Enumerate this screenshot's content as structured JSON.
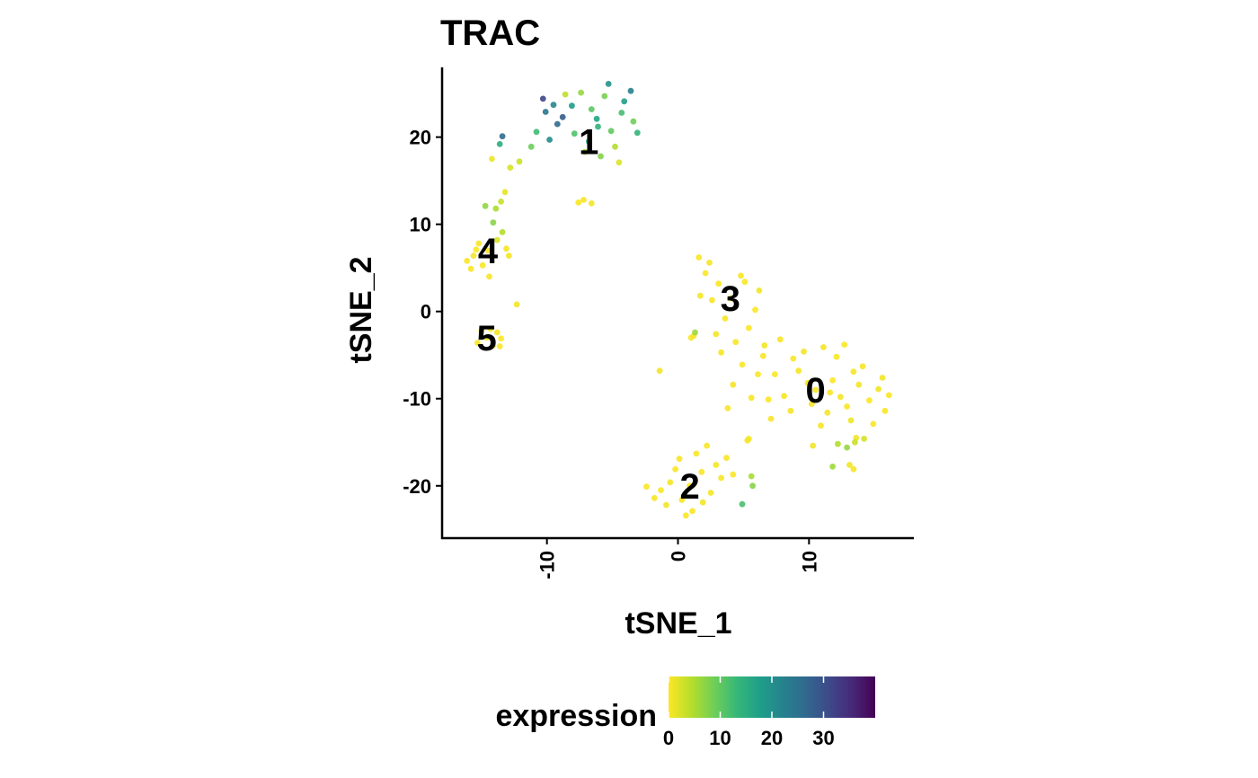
{
  "chart_data": {
    "type": "scatter",
    "title": "TRAC",
    "xlabel": "tSNE_1",
    "ylabel": "tSNE_2",
    "xlim": [
      -18,
      18
    ],
    "ylim": [
      -26,
      28
    ],
    "xticks": [
      -10,
      0,
      10
    ],
    "xtick_labels": [
      "-10",
      "0",
      "10"
    ],
    "yticks": [
      -20,
      -10,
      0,
      10,
      20
    ],
    "ytick_labels": [
      "-20",
      "-10",
      "0",
      "10",
      "20"
    ],
    "grid": false,
    "cluster_labels": [
      {
        "label": "0",
        "x": 10.5,
        "y": -9
      },
      {
        "label": "1",
        "x": -6.8,
        "y": 19.5
      },
      {
        "label": "2",
        "x": 0.9,
        "y": -20
      },
      {
        "label": "3",
        "x": 4,
        "y": 1.5
      },
      {
        "label": "4",
        "x": -14.5,
        "y": 7
      },
      {
        "label": "5",
        "x": -14.6,
        "y": -3
      }
    ],
    "legend": {
      "title": "expression",
      "position": "bottom",
      "ticks": [
        0,
        10,
        20,
        30
      ],
      "tick_labels": [
        "0",
        "10",
        "20",
        "30"
      ],
      "range": [
        0,
        40
      ],
      "colors": [
        "#FDE725",
        "#B5DE2B",
        "#6ECE58",
        "#35B779",
        "#1F9E89",
        "#26828E",
        "#31688E",
        "#3E4989",
        "#482878",
        "#440154"
      ]
    },
    "points": [
      {
        "x": 10.5,
        "y": -9,
        "v": 0.4
      },
      {
        "x": 12.1,
        "y": -5.2,
        "v": 0.2
      },
      {
        "x": 13.8,
        "y": -8.4,
        "v": 0.6
      },
      {
        "x": 9.2,
        "y": -6.8,
        "v": 0.3
      },
      {
        "x": 11.4,
        "y": -11.6,
        "v": 0.5
      },
      {
        "x": 14.6,
        "y": -10.2,
        "v": 0.1
      },
      {
        "x": 15.3,
        "y": -8.9,
        "v": 0.7
      },
      {
        "x": 12.7,
        "y": -3.8,
        "v": 0.2
      },
      {
        "x": 8.1,
        "y": -9.7,
        "v": 0.4
      },
      {
        "x": 10.9,
        "y": -13.1,
        "v": 0.3
      },
      {
        "x": 13.2,
        "y": -12.5,
        "v": 0.9
      },
      {
        "x": 15.8,
        "y": -11.4,
        "v": 0.2
      },
      {
        "x": 9.6,
        "y": -4.6,
        "v": 0.5
      },
      {
        "x": 11.8,
        "y": -7.9,
        "v": 0.1
      },
      {
        "x": 14.1,
        "y": -6.3,
        "v": 0.3
      },
      {
        "x": 12.4,
        "y": -9.8,
        "v": 0.6
      },
      {
        "x": 7.4,
        "y": -7.2,
        "v": 0.2
      },
      {
        "x": 10.2,
        "y": -10.6,
        "v": 0.4
      },
      {
        "x": 13.6,
        "y": -14.5,
        "v": 0.8
      },
      {
        "x": 16.1,
        "y": -9.6,
        "v": 0.3
      },
      {
        "x": 8.8,
        "y": -5.4,
        "v": 0.2
      },
      {
        "x": 11.1,
        "y": -4.1,
        "v": 0.5
      },
      {
        "x": 14.9,
        "y": -12.9,
        "v": 0.4
      },
      {
        "x": 12.9,
        "y": -10.9,
        "v": 0.1
      },
      {
        "x": 9.9,
        "y": -8.2,
        "v": 0.3
      },
      {
        "x": 15.6,
        "y": -7.6,
        "v": 0.6
      },
      {
        "x": 11.6,
        "y": -9.3,
        "v": 0.2
      },
      {
        "x": 13.4,
        "y": -6.9,
        "v": 0.4
      },
      {
        "x": 12.2,
        "y": -15.2,
        "v": 4.5
      },
      {
        "x": 12.9,
        "y": -15.6,
        "v": 6.5
      },
      {
        "x": 13.5,
        "y": -15.0,
        "v": 3.2
      },
      {
        "x": 11.8,
        "y": -17.8,
        "v": 5.8
      },
      {
        "x": 10.3,
        "y": -15.4,
        "v": 0.6
      },
      {
        "x": 13.4,
        "y": -18.1,
        "v": 0.5
      },
      {
        "x": 13.1,
        "y": -17.6,
        "v": 0.7
      },
      {
        "x": 14.2,
        "y": -14.6,
        "v": 2.4
      },
      {
        "x": 6.5,
        "y": -5.1,
        "v": 0.4
      },
      {
        "x": 7.8,
        "y": -3.2,
        "v": 0.3
      },
      {
        "x": 8.6,
        "y": -11.4,
        "v": 0.5
      },
      {
        "x": 6.9,
        "y": -10.1,
        "v": 0.2
      },
      {
        "x": 4,
        "y": 1.5,
        "v": 0.3
      },
      {
        "x": 2.4,
        "y": 5.6,
        "v": 0.5
      },
      {
        "x": 1.6,
        "y": 6.2,
        "v": 0.2
      },
      {
        "x": 4.8,
        "y": 4.1,
        "v": 0.4
      },
      {
        "x": 3.1,
        "y": 3.2,
        "v": 0.1
      },
      {
        "x": 6.2,
        "y": 2.4,
        "v": 0.6
      },
      {
        "x": 3.6,
        "y": -0.8,
        "v": 0.3
      },
      {
        "x": 5.4,
        "y": -1.9,
        "v": 0.2
      },
      {
        "x": 2.9,
        "y": -2.6,
        "v": 0.5
      },
      {
        "x": 4.4,
        "y": -3.5,
        "v": 0.3
      },
      {
        "x": 5.9,
        "y": 0.2,
        "v": 0.1
      },
      {
        "x": 3.3,
        "y": -4.7,
        "v": 0.4
      },
      {
        "x": 4.9,
        "y": -6.1,
        "v": 0.2
      },
      {
        "x": 6.6,
        "y": -3.9,
        "v": 0.6
      },
      {
        "x": 2.6,
        "y": 1.3,
        "v": 0.3
      },
      {
        "x": 5.1,
        "y": 3.4,
        "v": 0.2
      },
      {
        "x": 4.2,
        "y": -8.4,
        "v": 0.5
      },
      {
        "x": 5.6,
        "y": -9.9,
        "v": 0.3
      },
      {
        "x": 3.8,
        "y": -11.1,
        "v": 0.4
      },
      {
        "x": 6.1,
        "y": -7.2,
        "v": 0.2
      },
      {
        "x": 7.1,
        "y": -12.3,
        "v": 0.4
      },
      {
        "x": 5.3,
        "y": -14.8,
        "v": 0.3
      },
      {
        "x": 1.7,
        "y": 1.8,
        "v": 0.4
      },
      {
        "x": 2.1,
        "y": 4.4,
        "v": 0.2
      },
      {
        "x": 1.2,
        "y": -2.8,
        "v": 0.6
      },
      {
        "x": 1.0,
        "y": -3.0,
        "v": 0.3
      },
      {
        "x": 1.3,
        "y": -2.4,
        "v": 6.0
      },
      {
        "x": 0.9,
        "y": -20,
        "v": 0.3
      },
      {
        "x": -0.6,
        "y": -19.6,
        "v": 0.5
      },
      {
        "x": 1.8,
        "y": -18.4,
        "v": 0.2
      },
      {
        "x": 0.3,
        "y": -21.6,
        "v": 0.4
      },
      {
        "x": -1.3,
        "y": -20.5,
        "v": 0.1
      },
      {
        "x": 2.5,
        "y": -20.8,
        "v": 0.6
      },
      {
        "x": 1.1,
        "y": -22.9,
        "v": 0.3
      },
      {
        "x": -0.2,
        "y": -18.1,
        "v": 0.2
      },
      {
        "x": 2.9,
        "y": -17.6,
        "v": 0.5
      },
      {
        "x": 1.4,
        "y": -16.3,
        "v": 0.3
      },
      {
        "x": -1.8,
        "y": -21.4,
        "v": 0.4
      },
      {
        "x": 0.6,
        "y": -23.4,
        "v": 0.2
      },
      {
        "x": 3.3,
        "y": -19.1,
        "v": 0.3
      },
      {
        "x": -0.9,
        "y": -22.2,
        "v": 0.5
      },
      {
        "x": 2.2,
        "y": -15.4,
        "v": 0.1
      },
      {
        "x": 3.7,
        "y": -16.8,
        "v": 0.4
      },
      {
        "x": -2.4,
        "y": -20.1,
        "v": 0.2
      },
      {
        "x": 1.9,
        "y": -21.9,
        "v": 0.6
      },
      {
        "x": 0.1,
        "y": -16.9,
        "v": 0.3
      },
      {
        "x": 4.2,
        "y": -18.7,
        "v": 0.2
      },
      {
        "x": 5.6,
        "y": -18.9,
        "v": 5.2
      },
      {
        "x": 5.7,
        "y": -20.0,
        "v": 7.4
      },
      {
        "x": 4.9,
        "y": -22.1,
        "v": 11.8
      },
      {
        "x": 5.4,
        "y": -14.6,
        "v": 0.5
      },
      {
        "x": -1.4,
        "y": -6.8,
        "v": 0.6
      },
      {
        "x": -6.8,
        "y": 19.5,
        "v": 14.5
      },
      {
        "x": -5.6,
        "y": 24.7,
        "v": 8.2
      },
      {
        "x": -4.3,
        "y": 22.8,
        "v": 12.1
      },
      {
        "x": -9.2,
        "y": 21.5,
        "v": 26.4
      },
      {
        "x": -8.1,
        "y": 23.6,
        "v": 18.3
      },
      {
        "x": -10.3,
        "y": 24.4,
        "v": 31.5
      },
      {
        "x": -7.4,
        "y": 25.1,
        "v": 6.4
      },
      {
        "x": -5.1,
        "y": 20.7,
        "v": 9.8
      },
      {
        "x": -3.6,
        "y": 25.3,
        "v": 22.6
      },
      {
        "x": -6.2,
        "y": 22.1,
        "v": 16.8
      },
      {
        "x": -4.8,
        "y": 18.9,
        "v": 4.6
      },
      {
        "x": -7.9,
        "y": 20.4,
        "v": 11.3
      },
      {
        "x": -9.8,
        "y": 19.7,
        "v": 20.7
      },
      {
        "x": -3.1,
        "y": 20.5,
        "v": 13.9
      },
      {
        "x": -5.9,
        "y": 17.8,
        "v": 7.5
      },
      {
        "x": -10.1,
        "y": 22.9,
        "v": 24.1
      },
      {
        "x": -8.6,
        "y": 24.9,
        "v": 3.8
      },
      {
        "x": -4.1,
        "y": 24.1,
        "v": 17.4
      },
      {
        "x": -6.6,
        "y": 23.2,
        "v": 10.2
      },
      {
        "x": -7.1,
        "y": 18.3,
        "v": 5.6
      },
      {
        "x": -11.2,
        "y": 18.9,
        "v": 9.1
      },
      {
        "x": -12.1,
        "y": 17.2,
        "v": 3.2
      },
      {
        "x": -12.8,
        "y": 16.5,
        "v": 2.4
      },
      {
        "x": -13.4,
        "y": 20.1,
        "v": 25.8
      },
      {
        "x": -13.6,
        "y": 19.2,
        "v": 15.2
      },
      {
        "x": -10.8,
        "y": 20.6,
        "v": 12.6
      },
      {
        "x": -5.3,
        "y": 26.1,
        "v": 19.4
      },
      {
        "x": -3.4,
        "y": 21.8,
        "v": 8.9
      },
      {
        "x": -4.5,
        "y": 17.1,
        "v": 2.1
      },
      {
        "x": -8.8,
        "y": 22.3,
        "v": 28.2
      },
      {
        "x": -9.5,
        "y": 23.7,
        "v": 21.5
      },
      {
        "x": -6.1,
        "y": 21.2,
        "v": 14.1
      },
      {
        "x": -7.2,
        "y": 12.8,
        "v": 0.4
      },
      {
        "x": -6.6,
        "y": 12.4,
        "v": 0.6
      },
      {
        "x": -7.6,
        "y": 12.5,
        "v": 0.3
      },
      {
        "x": -14.2,
        "y": 17.5,
        "v": 1.1
      },
      {
        "x": -14.5,
        "y": 7,
        "v": 0.3
      },
      {
        "x": -15.6,
        "y": 6.4,
        "v": 0.5
      },
      {
        "x": -13.8,
        "y": 8.2,
        "v": 2.2
      },
      {
        "x": -14.9,
        "y": 5.3,
        "v": 0.2
      },
      {
        "x": -15.2,
        "y": 7.8,
        "v": 0.4
      },
      {
        "x": -13.4,
        "y": 9.1,
        "v": 4.6
      },
      {
        "x": -14.1,
        "y": 10.2,
        "v": 7.3
      },
      {
        "x": -13.9,
        "y": 11.8,
        "v": 5.1
      },
      {
        "x": -13.5,
        "y": 12.6,
        "v": 3.3
      },
      {
        "x": -13.2,
        "y": 13.7,
        "v": 1.4
      },
      {
        "x": -14.7,
        "y": 12.1,
        "v": 6.8
      },
      {
        "x": -16.1,
        "y": 5.8,
        "v": 0.2
      },
      {
        "x": -15.8,
        "y": 4.9,
        "v": 0.3
      },
      {
        "x": -13.1,
        "y": 7.2,
        "v": 0.6
      },
      {
        "x": -14.4,
        "y": 4.0,
        "v": 0.4
      },
      {
        "x": -15.4,
        "y": 7.1,
        "v": 0.1
      },
      {
        "x": -12.9,
        "y": 6.4,
        "v": 0.5
      },
      {
        "x": -12.3,
        "y": 0.8,
        "v": 0.7
      },
      {
        "x": -14.6,
        "y": -3,
        "v": 0.3
      },
      {
        "x": -13.8,
        "y": -2.4,
        "v": 0.5
      },
      {
        "x": -15.3,
        "y": -3.6,
        "v": 0.2
      },
      {
        "x": -14.1,
        "y": -3.9,
        "v": 0.4
      },
      {
        "x": -13.5,
        "y": -3.1,
        "v": 0.1
      },
      {
        "x": -15.0,
        "y": -2.2,
        "v": 0.6
      },
      {
        "x": -14.3,
        "y": -2.0,
        "v": 0.3
      },
      {
        "x": -13.6,
        "y": -4.0,
        "v": 0.2
      }
    ]
  }
}
